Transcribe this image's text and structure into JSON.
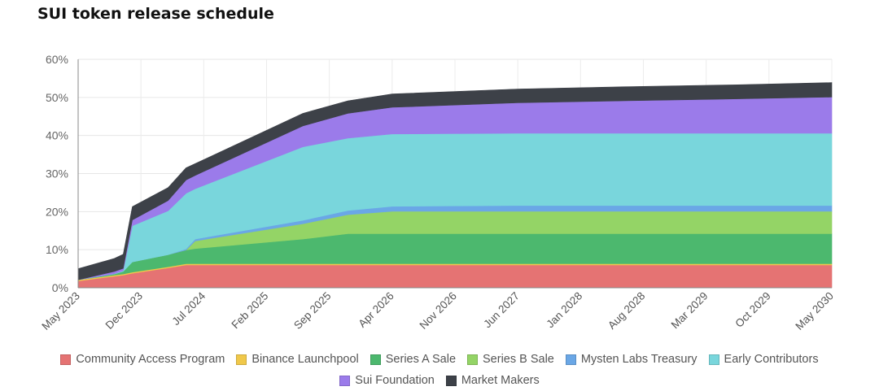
{
  "chart_data": {
    "type": "area",
    "stacked": true,
    "title": "SUI token release schedule",
    "xlabel": "",
    "ylabel": "",
    "ylim": [
      0,
      60
    ],
    "y_ticks": [
      "0%",
      "10%",
      "20%",
      "30%",
      "40%",
      "50%",
      "60%"
    ],
    "y_tick_values": [
      0,
      10,
      20,
      30,
      40,
      50,
      60
    ],
    "x_tick_labels": [
      "May 2023",
      "Dec 2023",
      "Jul 2024",
      "Feb 2025",
      "Sep 2025",
      "Apr 2026",
      "Nov 2026",
      "Jun 2027",
      "Jan 2028",
      "Aug 2028",
      "Mar 2029",
      "Oct 2029",
      "May 2030"
    ],
    "grid": true,
    "legend_position": "bottom",
    "x": [
      "2023-05",
      "2023-09",
      "2023-10",
      "2023-11",
      "2024-03",
      "2024-05",
      "2024-06",
      "2025-06",
      "2025-11",
      "2026-04",
      "2027-06",
      "2028-06",
      "2029-06",
      "2030-05"
    ],
    "series": [
      {
        "name": "Community Access Program",
        "color": "#e57373",
        "values": [
          1.8,
          3.0,
          3.3,
          3.8,
          5.2,
          6.0,
          6.0,
          6.0,
          6.0,
          6.0,
          6.0,
          6.0,
          6.0,
          6.0
        ]
      },
      {
        "name": "Binance Launchpool",
        "color": "#f0c84a",
        "values": [
          0.3,
          0.3,
          0.3,
          0.3,
          0.3,
          0.3,
          0.3,
          0.3,
          0.3,
          0.3,
          0.3,
          0.3,
          0.3,
          0.3
        ]
      },
      {
        "name": "Series A Sale",
        "color": "#4cb86e",
        "values": [
          0.0,
          0.3,
          0.7,
          2.7,
          3.2,
          3.6,
          4.0,
          6.5,
          7.9,
          7.9,
          7.9,
          7.9,
          7.9,
          7.9
        ]
      },
      {
        "name": "Series B Sale",
        "color": "#94d466",
        "values": [
          0.0,
          0.0,
          0.0,
          0.0,
          0.0,
          0.0,
          2.0,
          4.0,
          5.0,
          5.9,
          5.9,
          5.9,
          5.9,
          5.9
        ]
      },
      {
        "name": "Mysten Labs Treasury",
        "color": "#6aa7e6",
        "values": [
          0.0,
          0.0,
          0.0,
          0.0,
          0.0,
          0.3,
          0.5,
          0.9,
          1.1,
          1.3,
          1.5,
          1.5,
          1.5,
          1.5
        ]
      },
      {
        "name": "Early Contributors",
        "color": "#79d6dc",
        "values": [
          0.0,
          0.1,
          0.2,
          9.5,
          11.5,
          14.6,
          13.2,
          19.3,
          19.0,
          19.0,
          19.0,
          19.0,
          19.0,
          19.0
        ]
      },
      {
        "name": "Sui Foundation",
        "color": "#9b7bea",
        "values": [
          0.0,
          0.6,
          0.6,
          1.5,
          2.7,
          3.5,
          3.5,
          5.5,
          6.5,
          7.0,
          8.0,
          8.5,
          9.0,
          9.5
        ]
      },
      {
        "name": "Market Makers",
        "color": "#3d4148",
        "values": [
          2.9,
          3.4,
          3.7,
          3.5,
          3.4,
          3.2,
          3.1,
          3.3,
          3.3,
          3.5,
          3.6,
          3.7,
          3.7,
          3.8
        ]
      }
    ]
  }
}
